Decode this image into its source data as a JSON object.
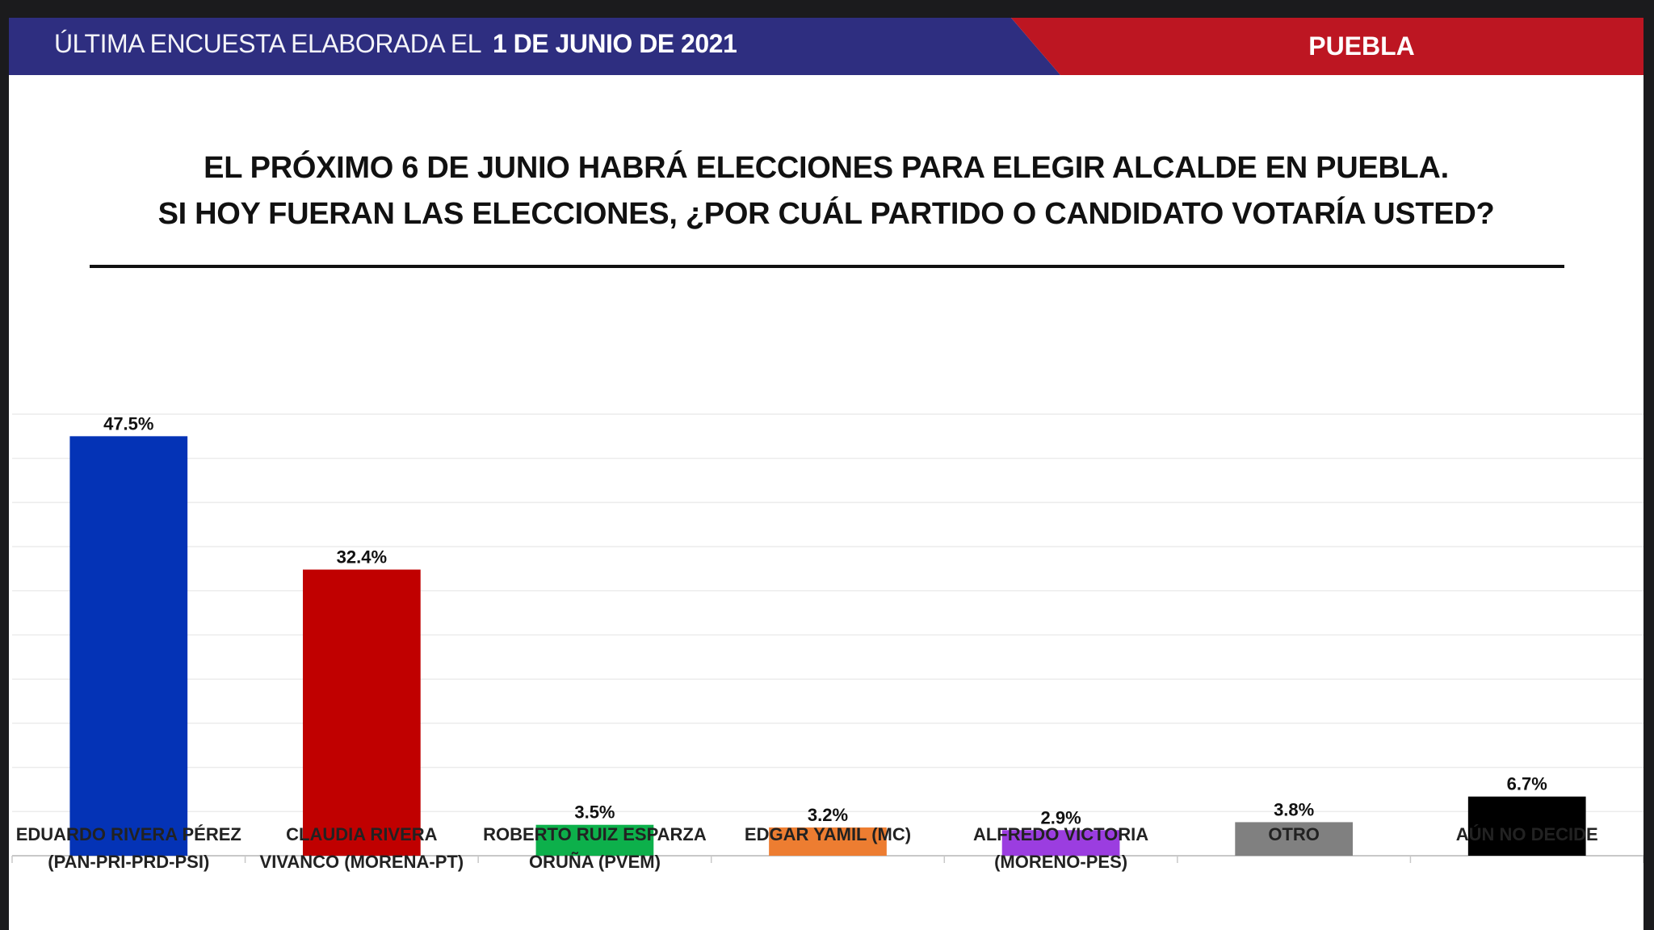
{
  "header": {
    "survey_label": "ÚLTIMA ENCUESTA ELABORADA EL",
    "survey_date": "1 DE JUNIO DE 2021",
    "region": "PUEBLA",
    "colors": {
      "blue": "#2e2e80",
      "red": "#bd1622"
    }
  },
  "question": {
    "line1": "EL PRÓXIMO 6 DE JUNIO HABRÁ ELECCIONES PARA ELEGIR ALCALDE EN PUEBLA.",
    "line2": "SI HOY FUERAN LAS ELECCIONES, ¿POR CUÁL PARTIDO O CANDIDATO VOTARÍA USTED?"
  },
  "chart_data": {
    "type": "bar",
    "title": "",
    "xlabel": "",
    "ylabel": "",
    "ylim": [
      0,
      50
    ],
    "grid": true,
    "categories": [
      [
        "EDUARDO RIVERA PÉREZ",
        "(PAN-PRI-PRD-PSI)"
      ],
      [
        "CLAUDIA RIVERA",
        "VIVANCO (MORENA-PT)"
      ],
      [
        "ROBERTO RUIZ ESPARZA",
        "ORUÑA (PVEM)"
      ],
      [
        "EDGAR YAMIL (MC)"
      ],
      [
        "ALFREDO VICTORIA",
        "(MORENO-PES)"
      ],
      [
        "OTRO"
      ],
      [
        "AÚN NO DECIDE"
      ]
    ],
    "values": [
      47.5,
      32.4,
      3.5,
      3.2,
      2.9,
      3.8,
      6.7
    ],
    "value_labels": [
      "47.5%",
      "32.4%",
      "3.5%",
      "3.2%",
      "2.9%",
      "3.8%",
      "6.7%"
    ],
    "colors": [
      "#0433b6",
      "#c00000",
      "#0db04b",
      "#ed7d31",
      "#9b3de0",
      "#808080",
      "#000000"
    ]
  }
}
